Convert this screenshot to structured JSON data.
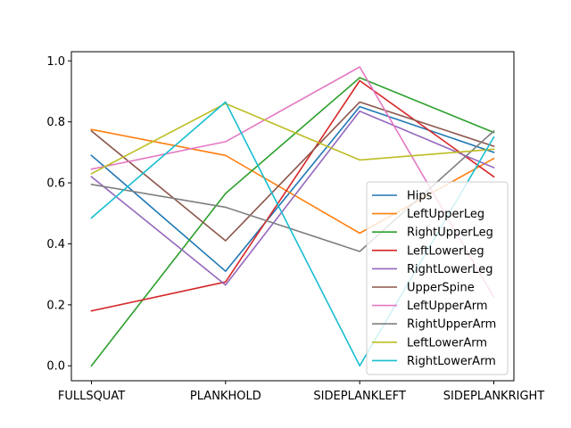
{
  "chart_data": {
    "type": "line",
    "categories": [
      "FULLSQUAT",
      "PLANKHOLD",
      "SIDEPLANKLEFT",
      "SIDEPLANKRIGHT"
    ],
    "ylim": [
      -0.049,
      1.03
    ],
    "yticks": [
      "0.0",
      "0.2",
      "0.4",
      "0.6",
      "0.8",
      "1.0"
    ],
    "legend_position": "lower-right",
    "grid": false,
    "series": [
      {
        "name": "Hips",
        "color": "#1f77b4",
        "values": [
          0.69,
          0.31,
          0.85,
          0.7
        ]
      },
      {
        "name": "LeftUpperLeg",
        "color": "#ff7f0e",
        "values": [
          0.775,
          0.69,
          0.435,
          0.68
        ]
      },
      {
        "name": "RightUpperLeg",
        "color": "#2ca02c",
        "values": [
          0.0,
          0.565,
          0.945,
          0.765
        ]
      },
      {
        "name": "LeftLowerLeg",
        "color": "#d62728",
        "values": [
          0.18,
          0.275,
          0.935,
          0.62
        ]
      },
      {
        "name": "RightLowerLeg",
        "color": "#9467bd",
        "values": [
          0.62,
          0.265,
          0.835,
          0.65
        ]
      },
      {
        "name": "UpperSpine",
        "color": "#8c564b",
        "values": [
          0.77,
          0.41,
          0.865,
          0.72
        ]
      },
      {
        "name": "LeftUpperArm",
        "color": "#e377c2",
        "values": [
          0.645,
          0.735,
          0.98,
          0.225
        ]
      },
      {
        "name": "RightUpperArm",
        "color": "#7f7f7f",
        "values": [
          0.595,
          0.52,
          0.375,
          0.77
        ]
      },
      {
        "name": "LeftLowerArm",
        "color": "#bcbd22",
        "values": [
          0.63,
          0.86,
          0.675,
          0.71
        ]
      },
      {
        "name": "RightLowerArm",
        "color": "#17becf",
        "values": [
          0.485,
          0.865,
          0.0,
          0.75
        ]
      }
    ]
  }
}
